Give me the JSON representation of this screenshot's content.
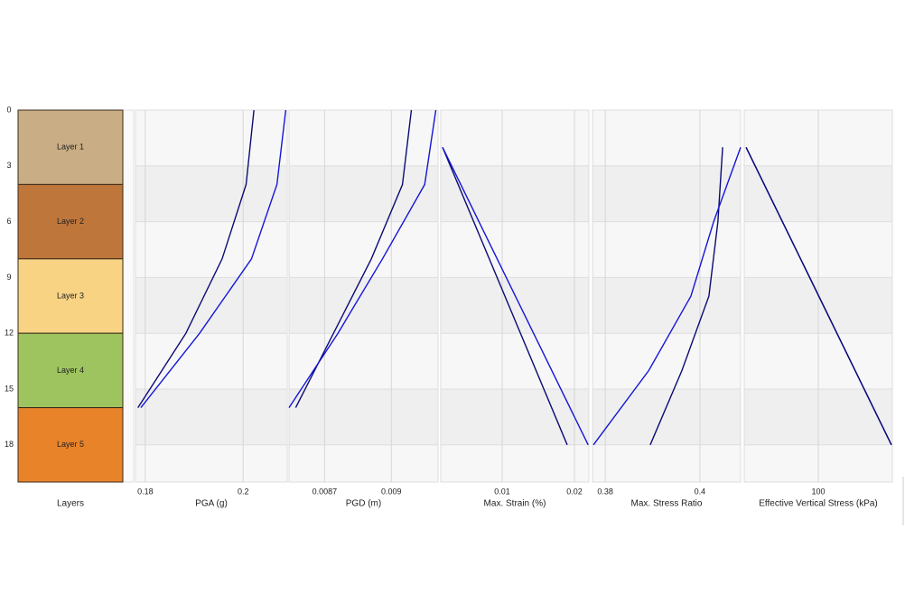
{
  "chart_data": [
    {
      "type": "layers",
      "x_label": "Layers",
      "categories": [
        "Layer 1",
        "Layer 2",
        "Layer 3",
        "Layer 4",
        "Layer 5"
      ],
      "values": [
        4,
        4,
        4,
        4,
        4
      ],
      "colors": [
        "#c9ad84",
        "#bf763b",
        "#f7d383",
        "#9ec45f",
        "#e8832a"
      ],
      "ylim": [
        0,
        20
      ],
      "yticks": [
        0,
        3,
        6,
        9,
        12,
        15,
        18
      ]
    },
    {
      "type": "line",
      "x_label": "PGA (g)",
      "xlim": [
        0.178,
        0.209
      ],
      "xticks": [
        0.18,
        0.2
      ],
      "series": [
        {
          "color": "#0b0b74",
          "values": [
            0.2022,
            0.2006,
            0.1957,
            0.1883,
            0.1785
          ],
          "depth": [
            0,
            4,
            8,
            12,
            16
          ]
        },
        {
          "color": "#1515d8",
          "values": [
            0.2087,
            0.2069,
            0.2017,
            0.1911,
            0.1791
          ],
          "depth": [
            0,
            4,
            8,
            12,
            16
          ]
        }
      ]
    },
    {
      "type": "line",
      "x_label": "PGD (m)",
      "xlim": [
        0.00854,
        0.00921
      ],
      "xticks": [
        0.0087,
        0.009
      ],
      "series": [
        {
          "color": "#0b0b74",
          "values": [
            0.00909,
            0.00905,
            0.00891,
            0.00874,
            0.00857
          ],
          "depth": [
            0,
            4,
            8,
            12,
            16
          ]
        },
        {
          "color": "#1515d8",
          "values": [
            0.0092,
            0.00915,
            0.00896,
            0.00876,
            0.00854
          ],
          "depth": [
            0,
            4,
            8,
            12,
            16
          ]
        }
      ]
    },
    {
      "type": "line",
      "x_label": "Max. Strain (%)",
      "xlim": [
        0.0015,
        0.022
      ],
      "xticks": [
        0.01,
        0.02
      ],
      "series": [
        {
          "color": "#0b0b74",
          "values": [
            0.00175,
            0.019
          ],
          "depth": [
            2,
            18
          ]
        },
        {
          "color": "#1515d8",
          "values": [
            0.00175,
            0.0219
          ],
          "depth": [
            2,
            18
          ]
        }
      ]
    },
    {
      "type": "line",
      "x_label": "Max. Stress Ratio",
      "xlim": [
        0.3773,
        0.4086
      ],
      "xticks": [
        0.38,
        0.4
      ],
      "series": [
        {
          "color": "#0b0b74",
          "values": [
            0.4048,
            0.4038,
            0.4019,
            0.3962,
            0.3895
          ],
          "depth": [
            2,
            6,
            10,
            14,
            18
          ]
        },
        {
          "color": "#1515d8",
          "values": [
            0.4086,
            0.4029,
            0.3981,
            0.3892,
            0.3775
          ],
          "depth": [
            2,
            6,
            10,
            14,
            18
          ]
        }
      ]
    },
    {
      "type": "line",
      "x_label": "Effective Vertical Stress (kPa)",
      "xlim": [
        20,
        180
      ],
      "xticks": [
        100
      ],
      "series": [
        {
          "color": "#1515d8",
          "values": [
            22,
            179
          ],
          "depth": [
            2,
            18
          ]
        },
        {
          "color": "#0b0b74",
          "values": [
            22,
            179
          ],
          "depth": [
            2,
            18
          ]
        }
      ]
    }
  ]
}
